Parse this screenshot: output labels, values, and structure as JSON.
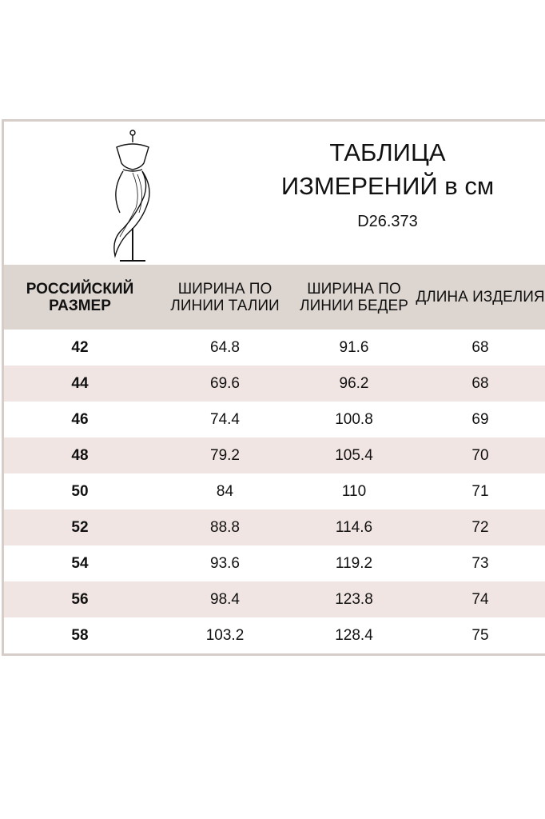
{
  "header": {
    "title_line1": "ТАБЛИЦА",
    "title_line2": "ИЗМЕРЕНИЙ в см",
    "code": "D26.373",
    "logo": "mannequin-dress-icon"
  },
  "colors": {
    "header_bg": "#ddd5cf",
    "alt_row": "#f1e5e3",
    "border": "#d6ccc8"
  },
  "columns": [
    "РОССИЙСКИЙ РАЗМЕР",
    "ШИРИНА ПО ЛИНИИ ТАЛИИ",
    "ШИРИНА ПО ЛИНИИ БЕДЕР",
    "ДЛИНА ИЗДЕЛИЯ"
  ],
  "rows": [
    [
      "42",
      "64.8",
      "91.6",
      "68"
    ],
    [
      "44",
      "69.6",
      "96.2",
      "68"
    ],
    [
      "46",
      "74.4",
      "100.8",
      "69"
    ],
    [
      "48",
      "79.2",
      "105.4",
      "70"
    ],
    [
      "50",
      "84",
      "110",
      "71"
    ],
    [
      "52",
      "88.8",
      "114.6",
      "72"
    ],
    [
      "54",
      "93.6",
      "119.2",
      "73"
    ],
    [
      "56",
      "98.4",
      "123.8",
      "74"
    ],
    [
      "58",
      "103.2",
      "128.4",
      "75"
    ]
  ]
}
